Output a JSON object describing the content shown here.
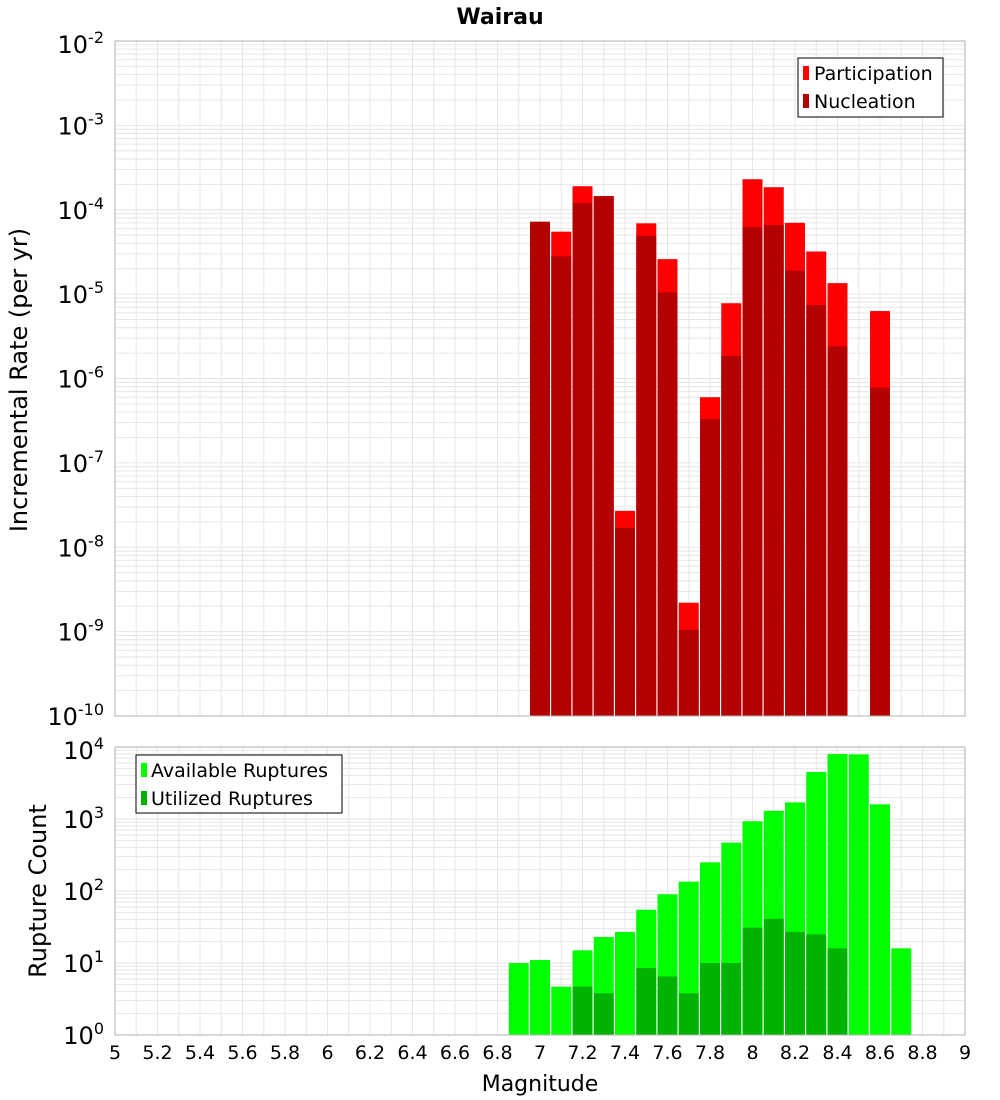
{
  "chart_data": [
    {
      "type": "bar",
      "title": "Wairau",
      "xlabel": "",
      "ylabel": "Incremental Rate (per yr)",
      "yscale": "log",
      "ylim": [
        1e-10,
        0.01
      ],
      "xlim": [
        5,
        9
      ],
      "y_ticks": [
        {
          "base": "10",
          "exp": "-2"
        },
        {
          "base": "10",
          "exp": "-3"
        },
        {
          "base": "10",
          "exp": "-4"
        },
        {
          "base": "10",
          "exp": "-5"
        },
        {
          "base": "10",
          "exp": "-6"
        },
        {
          "base": "10",
          "exp": "-7"
        },
        {
          "base": "10",
          "exp": "-8"
        },
        {
          "base": "10",
          "exp": "-9"
        },
        {
          "base": "10",
          "exp": "-10"
        }
      ],
      "legend": {
        "position": "top-right",
        "entries": [
          {
            "name": "Participation",
            "color": "#ff0000"
          },
          {
            "name": "Nucleation",
            "color": "#b30000"
          }
        ]
      },
      "series": [
        {
          "name": "Participation",
          "color": "#ff0000",
          "x": [
            7.0,
            7.1,
            7.2,
            7.3,
            7.4,
            7.5,
            7.6,
            7.7,
            7.8,
            7.9,
            8.0,
            8.1,
            8.2,
            8.3,
            8.4,
            8.6
          ],
          "values": [
            7.2e-05,
            5.5e-05,
            0.00019,
            0.000145,
            2.7e-08,
            6.9e-05,
            2.6e-05,
            2.2e-09,
            6e-07,
            7.8e-06,
            0.00023,
            0.000185,
            7e-05,
            3.2e-05,
            1.35e-05,
            6.3e-06
          ]
        },
        {
          "name": "Nucleation",
          "color": "#b30000",
          "x": [
            7.0,
            7.1,
            7.2,
            7.3,
            7.4,
            7.5,
            7.6,
            7.7,
            7.8,
            7.9,
            8.0,
            8.1,
            8.2,
            8.3,
            8.4,
            8.6
          ],
          "values": [
            7.2e-05,
            2.8e-05,
            0.00012,
            0.000145,
            1.7e-08,
            4.9e-05,
            1.05e-05,
            1.05e-09,
            3.3e-07,
            1.85e-06,
            6.2e-05,
            6.6e-05,
            1.9e-05,
            7.4e-06,
            2.4e-06,
            7.8e-07
          ]
        }
      ]
    },
    {
      "type": "bar",
      "xlabel": "Magnitude",
      "ylabel": "Rupture Count",
      "yscale": "log",
      "ylim": [
        1,
        10000
      ],
      "xlim": [
        5,
        9
      ],
      "x_ticks": [
        "5",
        "5.2",
        "5.4",
        "5.6",
        "5.8",
        "6",
        "6.2",
        "6.4",
        "6.6",
        "6.8",
        "7",
        "7.2",
        "7.4",
        "7.6",
        "7.8",
        "8",
        "8.2",
        "8.4",
        "8.6",
        "8.8",
        "9"
      ],
      "y_ticks": [
        {
          "base": "10",
          "exp": "4"
        },
        {
          "base": "10",
          "exp": "3"
        },
        {
          "base": "10",
          "exp": "2"
        },
        {
          "base": "10",
          "exp": "1"
        },
        {
          "base": "10",
          "exp": "0"
        }
      ],
      "legend": {
        "position": "top-left",
        "entries": [
          {
            "name": "Available Ruptures",
            "color": "#00ff00"
          },
          {
            "name": "Utilized Ruptures",
            "color": "#00b300"
          }
        ]
      },
      "series": [
        {
          "name": "Available Ruptures",
          "color": "#00ff00",
          "x": [
            6.9,
            7.0,
            7.1,
            7.2,
            7.3,
            7.4,
            7.5,
            7.6,
            7.7,
            7.8,
            7.9,
            8.0,
            8.1,
            8.2,
            8.3,
            8.4,
            8.5,
            8.6,
            8.7
          ],
          "values": [
            10,
            11,
            4.7,
            15,
            23,
            27,
            55,
            90,
            135,
            250,
            470,
            930,
            1300,
            1700,
            4500,
            8000,
            7900,
            1600,
            16
          ]
        },
        {
          "name": "Utilized Ruptures",
          "color": "#00b300",
          "x": [
            7.0,
            7.1,
            7.2,
            7.3,
            7.4,
            7.5,
            7.6,
            7.7,
            7.8,
            7.9,
            8.0,
            8.1,
            8.2,
            8.3,
            8.4,
            8.6
          ],
          "values": [
            1,
            1,
            4.7,
            3.8,
            1,
            8.5,
            6.5,
            3.8,
            10,
            10,
            31,
            41,
            27,
            25,
            16,
            1
          ]
        }
      ]
    }
  ]
}
